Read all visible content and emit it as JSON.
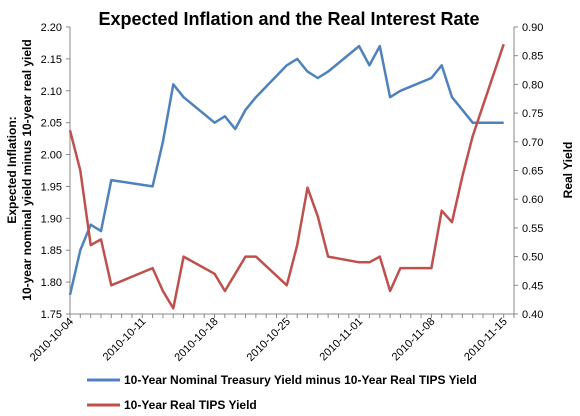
{
  "chart_data": {
    "type": "line",
    "title": "Expected Inflation and the Real Interest Rate",
    "ylabel_left_lines": [
      "Expected Inflation:",
      "10-year nominal yield  minus 10-year real yield"
    ],
    "ylabel_right": "Real Yield",
    "x_ticks": [
      "2010-10-04",
      "2010-10-11",
      "2010-10-18",
      "2010-10-25",
      "2010-11-01",
      "2010-11-08",
      "2010-11-15"
    ],
    "x_range": [
      "2010-10-04",
      "2010-11-16"
    ],
    "y_left_ticks": [
      "1.75",
      "1.80",
      "1.85",
      "1.90",
      "1.95",
      "2.00",
      "2.05",
      "2.10",
      "2.15",
      "2.20"
    ],
    "y_left_range": [
      1.75,
      2.2
    ],
    "y_right_ticks": [
      "0.40",
      "0.45",
      "0.50",
      "0.55",
      "0.60",
      "0.65",
      "0.70",
      "0.75",
      "0.80",
      "0.85",
      "0.90"
    ],
    "y_right_range": [
      0.4,
      0.9
    ],
    "grid": false,
    "legend_position": "bottom",
    "series": [
      {
        "name": "10-Year Nominal Treasury Yield minus 10-Year Real TIPS Yield",
        "axis": "left",
        "color": "#4F81BD",
        "x": [
          "2010-10-04",
          "2010-10-05",
          "2010-10-06",
          "2010-10-07",
          "2010-10-08",
          "2010-10-12",
          "2010-10-13",
          "2010-10-14",
          "2010-10-15",
          "2010-10-18",
          "2010-10-19",
          "2010-10-20",
          "2010-10-21",
          "2010-10-22",
          "2010-10-25",
          "2010-10-26",
          "2010-10-27",
          "2010-10-28",
          "2010-10-29",
          "2010-11-01",
          "2010-11-02",
          "2010-11-03",
          "2010-11-04",
          "2010-11-05",
          "2010-11-08",
          "2010-11-09",
          "2010-11-10",
          "2010-11-11",
          "2010-11-12",
          "2010-11-15"
        ],
        "y": [
          1.78,
          1.85,
          1.89,
          1.88,
          1.96,
          1.95,
          2.02,
          2.11,
          2.09,
          2.05,
          2.06,
          2.04,
          2.07,
          2.09,
          2.14,
          2.15,
          2.13,
          2.12,
          2.13,
          2.17,
          2.14,
          2.17,
          2.09,
          2.1,
          2.12,
          2.14,
          2.09,
          2.07,
          2.05,
          2.05
        ]
      },
      {
        "name": "10-Year Real TIPS Yield",
        "axis": "right",
        "color": "#C0504D",
        "x": [
          "2010-10-04",
          "2010-10-05",
          "2010-10-06",
          "2010-10-07",
          "2010-10-08",
          "2010-10-12",
          "2010-10-13",
          "2010-10-14",
          "2010-10-15",
          "2010-10-18",
          "2010-10-19",
          "2010-10-20",
          "2010-10-21",
          "2010-10-22",
          "2010-10-25",
          "2010-10-26",
          "2010-10-27",
          "2010-10-28",
          "2010-10-29",
          "2010-11-01",
          "2010-11-02",
          "2010-11-03",
          "2010-11-04",
          "2010-11-05",
          "2010-11-08",
          "2010-11-09",
          "2010-11-10",
          "2010-11-11",
          "2010-11-12",
          "2010-11-15"
        ],
        "y": [
          0.72,
          0.65,
          0.52,
          0.53,
          0.45,
          0.48,
          0.44,
          0.41,
          0.5,
          0.47,
          0.44,
          0.47,
          0.5,
          0.5,
          0.45,
          0.52,
          0.62,
          0.57,
          0.5,
          0.49,
          0.49,
          0.5,
          0.44,
          0.48,
          0.48,
          0.58,
          0.56,
          0.64,
          0.71,
          0.87
        ]
      }
    ]
  }
}
